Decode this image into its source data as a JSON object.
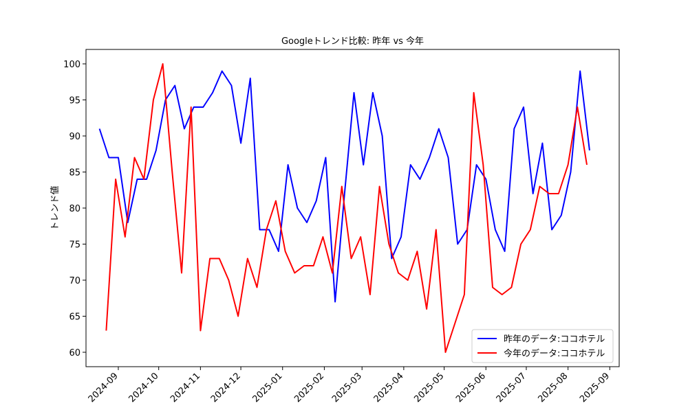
{
  "chart_data": {
    "type": "line",
    "title": "Googleトレンド比較: 昨年 vs 今年",
    "ylabel": "トレンド値",
    "ylim": [
      58,
      102
    ],
    "y_ticks": [
      60,
      65,
      70,
      75,
      80,
      85,
      90,
      95,
      100
    ],
    "x_ticks": [
      "2024-09",
      "2024-10",
      "2024-11",
      "2024-12",
      "2025-01",
      "2025-02",
      "2025-03",
      "2025-04",
      "2025-05",
      "2025-06",
      "2025-07",
      "2025-08",
      "2025-09"
    ],
    "grid": false,
    "legend_position": "lower-right",
    "series": [
      {
        "name": "昨年のデータ:ココホテル",
        "color": "#0000ff",
        "x": [
          "2024-08-18",
          "2024-08-25",
          "2024-09-01",
          "2024-09-08",
          "2024-09-15",
          "2024-09-22",
          "2024-09-29",
          "2024-10-06",
          "2024-10-13",
          "2024-10-20",
          "2024-10-27",
          "2024-11-03",
          "2024-11-10",
          "2024-11-17",
          "2024-11-24",
          "2024-12-01",
          "2024-12-08",
          "2024-12-15",
          "2024-12-22",
          "2024-12-29",
          "2025-01-05",
          "2025-01-12",
          "2025-01-19",
          "2025-01-26",
          "2025-02-02",
          "2025-02-09",
          "2025-02-16",
          "2025-02-23",
          "2025-03-02",
          "2025-03-09",
          "2025-03-16",
          "2025-03-23",
          "2025-03-30",
          "2025-04-06",
          "2025-04-13",
          "2025-04-20",
          "2025-04-27",
          "2025-05-04",
          "2025-05-11",
          "2025-05-18",
          "2025-05-25",
          "2025-06-01",
          "2025-06-08",
          "2025-06-15",
          "2025-06-22",
          "2025-06-29",
          "2025-07-06",
          "2025-07-13",
          "2025-07-20",
          "2025-07-27",
          "2025-08-03",
          "2025-08-10",
          "2025-08-17"
        ],
        "values": [
          91,
          87,
          87,
          78,
          84,
          84,
          88,
          95,
          97,
          91,
          94,
          94,
          96,
          99,
          97,
          89,
          98,
          77,
          77,
          74,
          86,
          80,
          78,
          81,
          87,
          67,
          82,
          96,
          86,
          96,
          90,
          73,
          76,
          86,
          84,
          87,
          91,
          87,
          75,
          77,
          86,
          84,
          77,
          74,
          91,
          94,
          82,
          89,
          77,
          79,
          85,
          99,
          88
        ]
      },
      {
        "name": "今年のデータ:ココホテル",
        "color": "#ff0000",
        "x": [
          "2024-08-23",
          "2024-08-30",
          "2024-09-06",
          "2024-09-13",
          "2024-09-20",
          "2024-09-27",
          "2024-10-04",
          "2024-10-11",
          "2024-10-18",
          "2024-10-25",
          "2024-11-01",
          "2024-11-08",
          "2024-11-15",
          "2024-11-22",
          "2024-11-29",
          "2024-12-06",
          "2024-12-13",
          "2024-12-20",
          "2024-12-27",
          "2025-01-03",
          "2025-01-10",
          "2025-01-17",
          "2025-01-24",
          "2025-01-31",
          "2025-02-07",
          "2025-02-14",
          "2025-02-21",
          "2025-02-28",
          "2025-03-07",
          "2025-03-14",
          "2025-03-21",
          "2025-03-28",
          "2025-04-04",
          "2025-04-11",
          "2025-04-18",
          "2025-04-25",
          "2025-05-02",
          "2025-05-09",
          "2025-05-16",
          "2025-05-23",
          "2025-05-30",
          "2025-06-06",
          "2025-06-13",
          "2025-06-20",
          "2025-06-27",
          "2025-07-04",
          "2025-07-11",
          "2025-07-18",
          "2025-07-25",
          "2025-08-01",
          "2025-08-08",
          "2025-08-15"
        ],
        "values": [
          63,
          84,
          76,
          87,
          84,
          95,
          100,
          85,
          71,
          94,
          63,
          73,
          73,
          70,
          65,
          73,
          69,
          77,
          81,
          74,
          71,
          72,
          72,
          76,
          71,
          83,
          73,
          76,
          68,
          83,
          75,
          71,
          70,
          74,
          66,
          77,
          60,
          64,
          68,
          96,
          86,
          69,
          68,
          69,
          75,
          77,
          83,
          82,
          82,
          86,
          94,
          86
        ]
      }
    ]
  }
}
